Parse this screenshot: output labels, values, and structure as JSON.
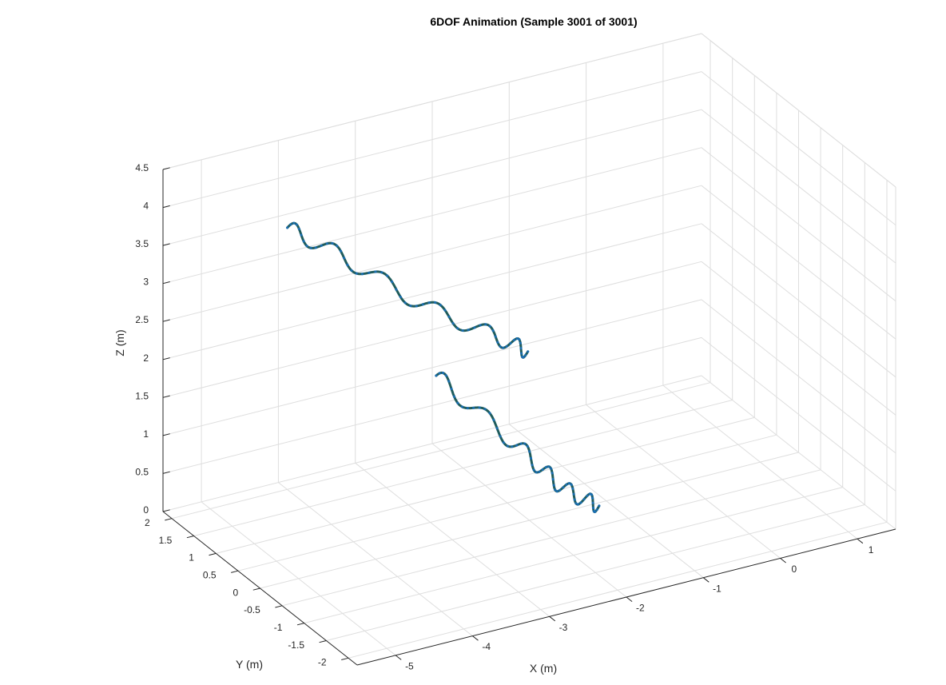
{
  "chart_data": {
    "type": "line",
    "projection": "3d",
    "title": "6DOF Animation (Sample 3001 of 3001)",
    "xlabel": "X (m)",
    "ylabel": "Y (m)",
    "zlabel": "Z (m)",
    "xlim": [
      -5.5,
      1.5
    ],
    "ylim": [
      -2.2,
      2.2
    ],
    "zlim": [
      0,
      4.5
    ],
    "grid": true,
    "x_ticks": [
      -5,
      -4,
      -3,
      -2,
      -1,
      0,
      1
    ],
    "x_tick_labels": [
      "-5",
      "-4",
      "-3",
      "-2",
      "-1",
      "0",
      "1"
    ],
    "y_ticks": [
      -2,
      -1.5,
      -1,
      -0.5,
      0,
      0.5,
      1,
      1.5,
      2
    ],
    "y_tick_labels": [
      "-2",
      "-1.5",
      "-1",
      "-0.5",
      "0",
      "0.5",
      "1",
      "1.5",
      "2"
    ],
    "z_ticks": [
      0,
      0.5,
      1,
      1.5,
      2,
      2.5,
      3,
      3.5,
      4,
      4.5
    ],
    "z_tick_labels": [
      "0",
      "0.5",
      "1",
      "1.5",
      "2",
      "2.5",
      "3",
      "3.5",
      "4",
      "4.5"
    ],
    "colors": {
      "trajectory": "#1f5c5c",
      "markers": "#1a73c8",
      "grid": "#dedede",
      "axis": "#262626"
    },
    "segments": [
      {
        "x": [
          -4.48,
          -3.72,
          -3.2,
          -2.6,
          -2.26
        ],
        "y": [
          1.16,
          1.2,
          0.32,
          -0.28,
          -0.42
        ],
        "z": [
          3.95,
          3.34,
          3.0,
          2.7,
          2.48
        ]
      },
      {
        "x": [
          -3.2,
          -2.44,
          -1.75,
          -1.31
        ],
        "y": [
          0.02,
          -0.48,
          -0.33,
          -0.38
        ],
        "z": [
          2.2,
          1.32,
          0.52,
          0.19
        ]
      }
    ]
  }
}
